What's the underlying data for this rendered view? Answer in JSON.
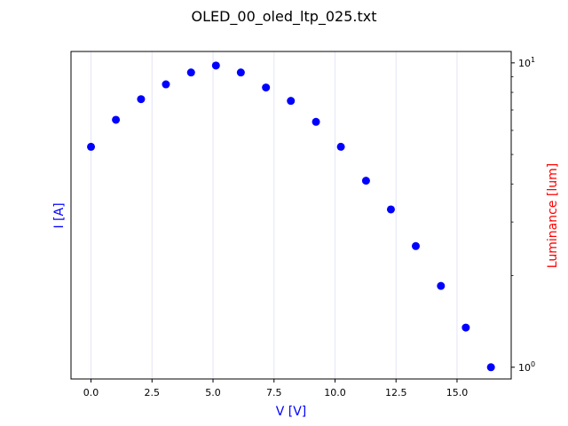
{
  "chart_data": {
    "type": "scatter",
    "title": "OLED_00_oled_ltp_025.txt",
    "xlabel": "V [V]",
    "ylabel_left": "I [A]",
    "ylabel_right": "Luminance [lum]",
    "xlim": [
      -0.82,
      17.22
    ],
    "ylim_right": [
      0.915,
      10.9
    ],
    "right_axis_scale": "log",
    "grid": "vertical lines at major x ticks",
    "x_ticks": [
      0.0,
      2.5,
      5.0,
      7.5,
      10.0,
      12.5,
      15.0
    ],
    "x_tick_labels": [
      "0.0",
      "2.5",
      "5.0",
      "7.5",
      "10.0",
      "12.5",
      "15.0"
    ],
    "right_ticks": [
      1,
      10
    ],
    "right_tick_labels": [
      "10^0",
      "10^1"
    ],
    "series": [
      {
        "axis": "right",
        "color": "#0000ff",
        "x": [
          0.0,
          1.02,
          2.05,
          3.07,
          4.1,
          5.12,
          6.14,
          7.17,
          8.19,
          9.22,
          10.24,
          11.27,
          12.29,
          13.31,
          14.34,
          15.36,
          16.39
        ],
        "y": [
          5.3,
          6.5,
          7.6,
          8.5,
          9.3,
          9.8,
          9.3,
          8.3,
          7.5,
          6.4,
          5.3,
          4.1,
          3.3,
          2.5,
          1.85,
          1.35,
          1.0
        ]
      }
    ]
  },
  "colors": {
    "xlabel": "#0000ff",
    "ylabel_left": "#0000ff",
    "ylabel_right": "#ff0000",
    "grid": "#e8e8f8",
    "marker": "#0000ff"
  }
}
